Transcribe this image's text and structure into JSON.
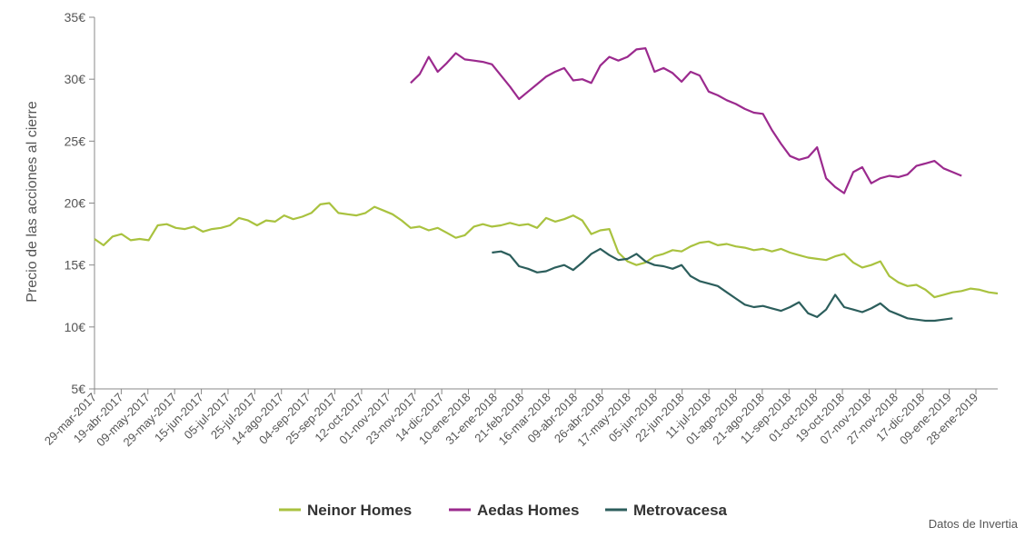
{
  "chart_data": {
    "type": "line",
    "title": "",
    "xlabel": "",
    "ylabel": "Precio de las acciones al cierre",
    "ylim": [
      5,
      35
    ],
    "y_ticks": [
      "5€",
      "10€",
      "15€",
      "20€",
      "25€",
      "30€",
      "35€"
    ],
    "y_tick_values": [
      5,
      10,
      15,
      20,
      25,
      30,
      35
    ],
    "x_ticks": [
      "29-mar-2017",
      "19-abr-2017",
      "09-may-2017",
      "29-may-2017",
      "15-jun-2017",
      "05-jul-2017",
      "25-jul-2017",
      "14-ago-2017",
      "04-sep-2017",
      "25-sep-2017",
      "12-oct-2017",
      "01-nov-2017",
      "23-nov-2017",
      "14-dic-2017",
      "10-ene-2018",
      "31-ene-2018",
      "21-feb-2018",
      "16-mar-2018",
      "09-abr-2018",
      "26-abr-2018",
      "17-may-2018",
      "05-jun-2018",
      "22-jun-2018",
      "11-jul-2018",
      "01-ago-2018",
      "21-ago-2018",
      "11-sep-2018",
      "01-oct-2018",
      "19-oct-2018",
      "07-nov-2018",
      "27-nov-2018",
      "17-dic-2018",
      "09-ene-2019",
      "28-ene-2019"
    ],
    "grid": false,
    "legend_position": "bottom",
    "series": [
      {
        "name": "Neinor Homes",
        "color": "#a9c23f",
        "start_index": 0,
        "values": [
          17.1,
          16.6,
          17.3,
          17.5,
          17.0,
          17.1,
          17.0,
          18.2,
          18.3,
          18.0,
          17.9,
          18.1,
          17.7,
          17.9,
          18.0,
          18.2,
          18.8,
          18.6,
          18.2,
          18.6,
          18.5,
          19.0,
          18.7,
          18.9,
          19.2,
          19.9,
          20.0,
          19.2,
          19.1,
          19.0,
          19.2,
          19.7,
          19.4,
          19.1,
          18.6,
          18.0,
          18.1,
          17.8,
          18.0,
          17.6,
          17.2,
          17.4,
          18.1,
          18.3,
          18.1,
          18.2,
          18.4,
          18.2,
          18.3,
          18.0,
          18.8,
          18.5,
          18.7,
          19.0,
          18.6,
          17.5,
          17.8,
          17.9,
          16.0,
          15.3,
          15.0,
          15.2,
          15.7,
          15.9,
          16.2,
          16.1,
          16.5,
          16.8,
          16.9,
          16.6,
          16.7,
          16.5,
          16.4,
          16.2,
          16.3,
          16.1,
          16.3,
          16.0,
          15.8,
          15.6,
          15.5,
          15.4,
          15.7,
          15.9,
          15.2,
          14.8,
          15.0,
          15.3,
          14.1,
          13.6,
          13.3,
          13.4,
          13.0,
          12.4,
          12.6,
          12.8,
          12.9,
          13.1,
          13.0,
          12.8,
          12.7
        ]
      },
      {
        "name": "Aedas Homes",
        "color": "#9b2a8e",
        "start_index": 35,
        "values": [
          29.7,
          30.4,
          31.8,
          30.6,
          31.3,
          32.1,
          31.6,
          31.5,
          31.4,
          31.2,
          30.3,
          29.4,
          28.4,
          29.0,
          29.6,
          30.2,
          30.6,
          30.9,
          29.9,
          30.0,
          29.7,
          31.1,
          31.8,
          31.5,
          31.8,
          32.4,
          32.5,
          30.6,
          30.9,
          30.5,
          29.8,
          30.6,
          30.3,
          29.0,
          28.7,
          28.3,
          28.0,
          27.6,
          27.3,
          27.2,
          25.9,
          24.8,
          23.8,
          23.5,
          23.7,
          24.5,
          22.0,
          21.3,
          20.8,
          22.5,
          22.9,
          21.6,
          22.0,
          22.2,
          22.1,
          22.3,
          23.0,
          23.2,
          23.4,
          22.8,
          22.5,
          22.2
        ]
      },
      {
        "name": "Metrovacesa",
        "color": "#2c5e5c",
        "start_index": 44,
        "values": [
          16.0,
          16.1,
          15.8,
          14.9,
          14.7,
          14.4,
          14.5,
          14.8,
          15.0,
          14.6,
          15.2,
          15.9,
          16.3,
          15.8,
          15.4,
          15.5,
          15.9,
          15.3,
          15.0,
          14.9,
          14.7,
          15.0,
          14.1,
          13.7,
          13.5,
          13.3,
          12.8,
          12.3,
          11.8,
          11.6,
          11.7,
          11.5,
          11.3,
          11.6,
          12.0,
          11.1,
          10.8,
          11.4,
          12.6,
          11.6,
          11.4,
          11.2,
          11.5,
          11.9,
          11.3,
          11.0,
          10.7,
          10.6,
          10.5,
          10.5,
          10.6,
          10.7
        ]
      }
    ]
  },
  "source": "Datos de Invertia"
}
